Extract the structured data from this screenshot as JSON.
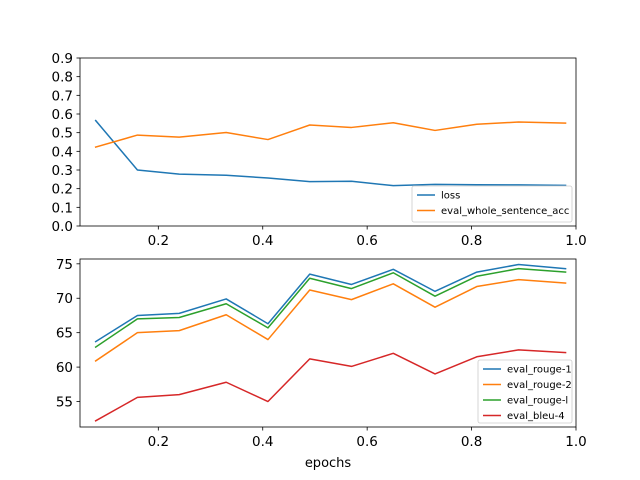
{
  "chart_data": [
    {
      "type": "line",
      "title": "",
      "xlabel": "",
      "ylabel": "",
      "xlim": [
        0.05,
        1.0
      ],
      "ylim": [
        0.0,
        0.9
      ],
      "xticks": [
        0.2,
        0.4,
        0.6,
        0.8,
        1.0
      ],
      "xtick_labels": [
        "0.2",
        "0.4",
        "0.6",
        "0.8",
        "1.0"
      ],
      "yticks": [
        0.0,
        0.1,
        0.2,
        0.3,
        0.4,
        0.5,
        0.6,
        0.7,
        0.8,
        0.9
      ],
      "ytick_labels": [
        "0.0",
        "0.1",
        "0.2",
        "0.3",
        "0.4",
        "0.5",
        "0.6",
        "0.7",
        "0.8",
        "0.9"
      ],
      "grid": false,
      "legend_position": "bottom-right",
      "x": [
        0.08,
        0.16,
        0.24,
        0.33,
        0.41,
        0.49,
        0.57,
        0.65,
        0.73,
        0.81,
        0.89,
        0.98
      ],
      "series": [
        {
          "name": "loss",
          "color": "#1f77b4",
          "values": [
            0.565,
            0.3,
            0.278,
            0.272,
            0.257,
            0.238,
            0.24,
            0.216,
            0.223,
            0.221,
            0.22,
            0.218
          ]
        },
        {
          "name": "eval_whole_sentence_acc",
          "color": "#ff7f0e",
          "values": [
            0.423,
            0.487,
            0.476,
            0.501,
            0.463,
            0.541,
            0.528,
            0.553,
            0.512,
            0.545,
            0.557,
            0.551
          ]
        }
      ]
    },
    {
      "type": "line",
      "title": "",
      "xlabel": "epochs",
      "ylabel": "",
      "xlim": [
        0.05,
        1.0
      ],
      "ylim": [
        51.3,
        75.7
      ],
      "xticks": [
        0.2,
        0.4,
        0.6,
        0.8,
        1.0
      ],
      "xtick_labels": [
        "0.2",
        "0.4",
        "0.6",
        "0.8",
        "1.0"
      ],
      "yticks": [
        55,
        60,
        65,
        70,
        75
      ],
      "ytick_labels": [
        "55",
        "60",
        "65",
        "70",
        "75"
      ],
      "grid": false,
      "legend_position": "bottom-right",
      "x": [
        0.08,
        0.16,
        0.24,
        0.33,
        0.41,
        0.49,
        0.57,
        0.65,
        0.73,
        0.81,
        0.89,
        0.98
      ],
      "series": [
        {
          "name": "eval_rouge-1",
          "color": "#1f77b4",
          "values": [
            63.7,
            67.5,
            67.8,
            69.9,
            66.3,
            73.5,
            72.0,
            74.2,
            71.0,
            73.8,
            74.9,
            74.3
          ]
        },
        {
          "name": "eval_rouge-2",
          "color": "#ff7f0e",
          "values": [
            60.9,
            65.0,
            65.3,
            67.6,
            64.0,
            71.2,
            69.8,
            72.1,
            68.7,
            71.7,
            72.7,
            72.2
          ]
        },
        {
          "name": "eval_rouge-l",
          "color": "#2ca02c",
          "values": [
            62.9,
            67.0,
            67.2,
            69.2,
            65.7,
            72.9,
            71.4,
            73.7,
            70.3,
            73.2,
            74.3,
            73.8
          ]
        },
        {
          "name": "eval_bleu-4",
          "color": "#d62728",
          "values": [
            52.2,
            55.6,
            56.0,
            57.8,
            55.0,
            61.2,
            60.1,
            62.0,
            59.0,
            61.5,
            62.5,
            62.1
          ]
        }
      ]
    }
  ]
}
